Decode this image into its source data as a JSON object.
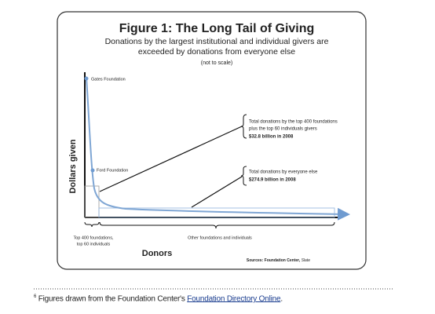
{
  "figure": {
    "title": "Figure 1: The Long Tail of Giving",
    "subtitle_lines": [
      "Donations by the largest institutional and individual givers are",
      "exceeded by donations from everyone else"
    ],
    "scale_note": "(not to scale)",
    "y_axis_label": "Dollars given",
    "x_axis_label": "Donors",
    "point_labels": [
      "Gates Foundation",
      "Ford Foundation"
    ],
    "head_annotation": [
      "Total donations by the top 400 foundations",
      "plus the top 60 individuals givers",
      "$32.8 billion in 2008"
    ],
    "tail_annotation": [
      "Total donations by everyone else",
      "$274.9 billion in 2008"
    ],
    "head_group_label": [
      "Top 400 foundations,",
      "top 60 individuals"
    ],
    "tail_group_label": "Other foundations and individuals",
    "sources_prefix": "Sources: Foundation Center, ",
    "sources_italic": "Slate"
  },
  "footnote": {
    "marker": "6",
    "text": " Figures drawn from the Foundation Center's ",
    "link": "Foundation Directory Online",
    "end": "."
  }
}
